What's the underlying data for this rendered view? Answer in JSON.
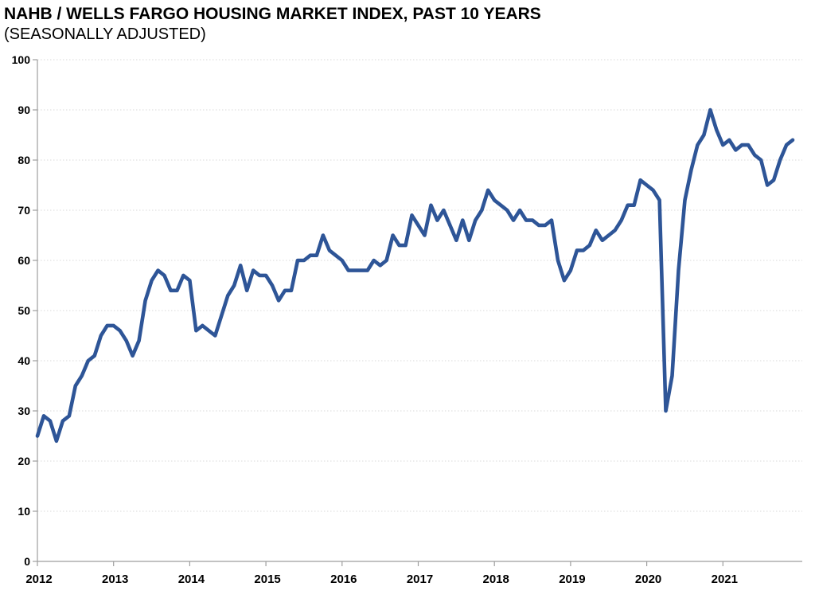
{
  "header": {
    "title": "NAHB / WELLS FARGO HOUSING MARKET INDEX, PAST 10 YEARS",
    "subtitle": "(SEASONALLY ADJUSTED)"
  },
  "chart_data": {
    "type": "line",
    "title": "NAHB / WELLS FARGO HOUSING MARKET INDEX, PAST 10 YEARS",
    "subtitle": "(SEASONALLY ADJUSTED)",
    "x_unit": "month",
    "x_range_start": "2012-01",
    "x_range_end": "2021-12",
    "x_tick_labels": [
      "2012",
      "2013",
      "2014",
      "2015",
      "2016",
      "2017",
      "2018",
      "2019",
      "2020",
      "2021"
    ],
    "y_ticks": [
      0,
      10,
      20,
      30,
      40,
      50,
      60,
      70,
      80,
      90,
      100
    ],
    "ylim": [
      0,
      100
    ],
    "grid": {
      "horizontal": true,
      "style": "dotted"
    },
    "legend_position": "none",
    "series": [
      {
        "name": "NAHB / Wells Fargo Housing Market Index (seasonally adjusted)",
        "color": "#2E5597",
        "values": [
          25,
          29,
          28,
          24,
          28,
          29,
          35,
          37,
          40,
          41,
          45,
          47,
          47,
          46,
          44,
          41,
          44,
          52,
          56,
          58,
          57,
          54,
          54,
          57,
          56,
          46,
          47,
          46,
          45,
          49,
          53,
          55,
          59,
          54,
          58,
          57,
          57,
          55,
          52,
          54,
          54,
          60,
          60,
          61,
          61,
          65,
          62,
          61,
          60,
          58,
          58,
          58,
          58,
          60,
          59,
          60,
          65,
          63,
          63,
          69,
          67,
          65,
          71,
          68,
          70,
          67,
          64,
          68,
          64,
          68,
          70,
          74,
          72,
          71,
          70,
          68,
          70,
          68,
          68,
          67,
          67,
          68,
          60,
          56,
          58,
          62,
          62,
          63,
          66,
          64,
          65,
          66,
          68,
          71,
          71,
          76,
          75,
          74,
          72,
          30,
          37,
          58,
          72,
          78,
          83,
          85,
          90,
          86,
          83,
          84,
          82,
          83,
          83,
          81,
          80,
          75,
          76,
          80,
          83,
          84
        ]
      }
    ],
    "colors": {
      "line": "#2E5597",
      "grid": "#D9D9D9",
      "axis": "#9E9E9E",
      "text": "#000000",
      "background": "#FFFFFF"
    }
  }
}
